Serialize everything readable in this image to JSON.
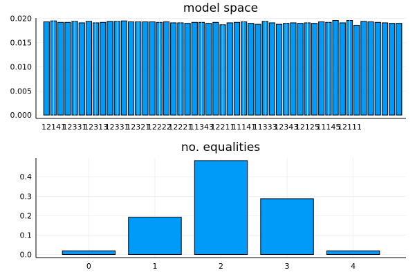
{
  "chart_data": [
    {
      "type": "bar",
      "title": "model space",
      "xlabel": "",
      "ylabel": "",
      "ylim": [
        -0.0007,
        0.0201
      ],
      "yticks": [
        0.0,
        0.005,
        0.01,
        0.015,
        0.02
      ],
      "ytick_labels": [
        "0.000",
        "0.005",
        "0.010",
        "0.015",
        "0.020"
      ],
      "xtick_labels": [
        "12141",
        "12331",
        "12313",
        "12331",
        "12321",
        "12222",
        "12221",
        "11343",
        "12211",
        "11141",
        "11333",
        "12343",
        "12125",
        "11145",
        "12111"
      ],
      "bar_color": "#009af9",
      "grid": true,
      "legend": "none",
      "values": [
        0.0193,
        0.0195,
        0.0192,
        0.0192,
        0.0194,
        0.0191,
        0.0194,
        0.0191,
        0.0192,
        0.0194,
        0.0194,
        0.0195,
        0.0193,
        0.0193,
        0.0193,
        0.0193,
        0.0192,
        0.0193,
        0.0191,
        0.0191,
        0.019,
        0.0192,
        0.0192,
        0.019,
        0.0192,
        0.0187,
        0.0191,
        0.0192,
        0.0193,
        0.019,
        0.0188,
        0.0194,
        0.0191,
        0.0188,
        0.019,
        0.0191,
        0.019,
        0.0191,
        0.019,
        0.0193,
        0.0192,
        0.0196,
        0.0191,
        0.0196,
        0.0186,
        0.0194,
        0.0193,
        0.0192,
        0.0191,
        0.019,
        0.019
      ]
    },
    {
      "type": "bar",
      "title": "no. equalities",
      "xlabel": "",
      "ylabel": "",
      "categories": [
        "0",
        "1",
        "2",
        "3",
        "4"
      ],
      "values": [
        0.019,
        0.192,
        0.483,
        0.287,
        0.019
      ],
      "ylim": [
        -0.016,
        0.497
      ],
      "yticks": [
        0.0,
        0.1,
        0.2,
        0.3,
        0.4
      ],
      "ytick_labels": [
        "0.0",
        "0.1",
        "0.2",
        "0.3",
        "0.4"
      ],
      "bar_color": "#009af9",
      "grid": true,
      "legend": "none"
    }
  ]
}
